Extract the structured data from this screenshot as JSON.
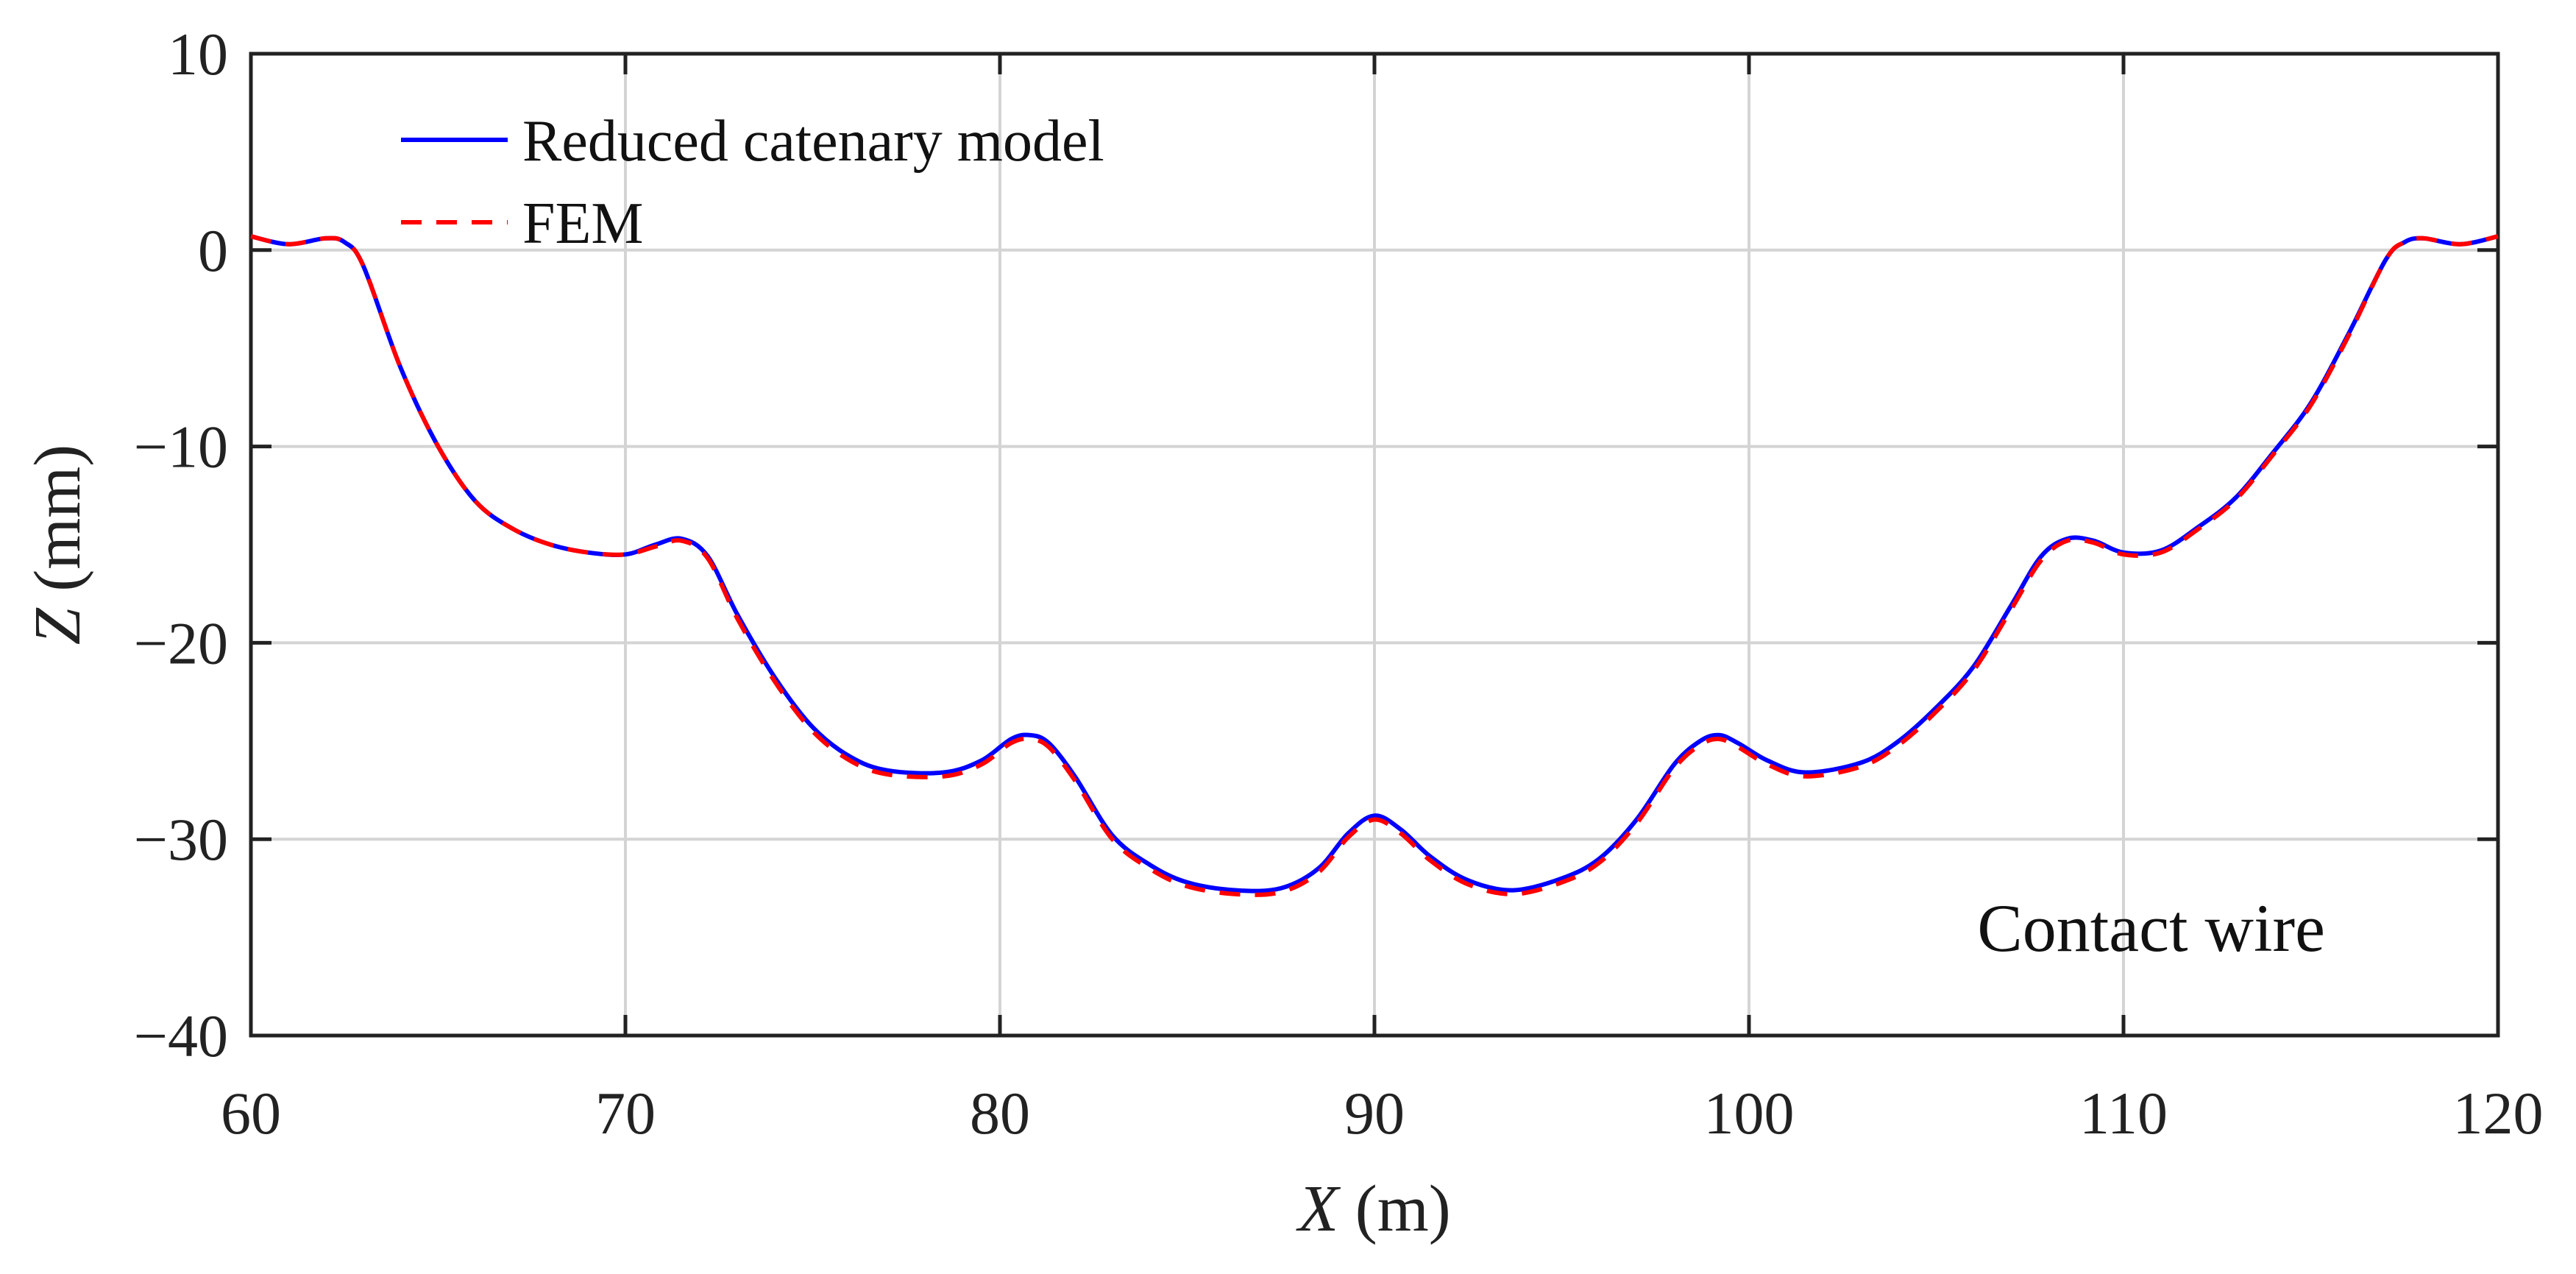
{
  "chart_data": {
    "type": "line",
    "title": "",
    "xlabel_var": "X",
    "xlabel_unit": " (m)",
    "ylabel_var": "Z",
    "ylabel_unit": " (mm)",
    "xlim": [
      60,
      120
    ],
    "ylim": [
      -40,
      10
    ],
    "x_ticks": [
      60,
      70,
      80,
      90,
      100,
      110,
      120
    ],
    "y_ticks": [
      10,
      0,
      -10,
      -20,
      -30,
      -40
    ],
    "x_tick_labels": [
      "60",
      "70",
      "80",
      "90",
      "100",
      "110",
      "120"
    ],
    "y_tick_labels": [
      "10",
      "0",
      "−10",
      "−20",
      "−30",
      "−40"
    ],
    "grid": true,
    "legend_position": "top-left",
    "annotation": "Contact wire",
    "x": [
      60.0,
      61.0,
      62.0,
      62.5,
      63.0,
      64.0,
      65.0,
      66.0,
      67.0,
      68.0,
      69.0,
      70.0,
      70.8,
      71.5,
      72.2,
      73.0,
      74.0,
      75.0,
      76.0,
      77.0,
      78.5,
      79.5,
      80.3,
      80.8,
      81.3,
      82.0,
      83.0,
      84.0,
      85.0,
      86.3,
      87.5,
      88.5,
      89.3,
      90.0,
      90.7,
      91.5,
      92.5,
      93.7,
      95.0,
      96.0,
      97.0,
      98.0,
      98.7,
      99.2,
      99.7,
      100.5,
      101.5,
      103.0,
      104.0,
      105.0,
      106.0,
      107.0,
      107.8,
      108.5,
      109.2,
      110.0,
      111.0,
      112.0,
      113.0,
      114.0,
      115.0,
      116.0,
      117.0,
      117.5,
      118.0,
      119.0,
      120.0
    ],
    "series": [
      {
        "name": "Reduced catenary model",
        "color": "#0000ff",
        "dash": "solid",
        "values": [
          0.7,
          0.3,
          0.6,
          0.4,
          -0.8,
          -6.0,
          -10.0,
          -12.8,
          -14.2,
          -15.0,
          -15.4,
          -15.5,
          -15.0,
          -14.7,
          -15.6,
          -18.6,
          -21.8,
          -24.3,
          -25.8,
          -26.5,
          -26.6,
          -26.0,
          -24.9,
          -24.7,
          -25.1,
          -26.8,
          -29.8,
          -31.3,
          -32.2,
          -32.6,
          -32.5,
          -31.5,
          -29.7,
          -28.8,
          -29.5,
          -30.9,
          -32.1,
          -32.6,
          -32.0,
          -31.0,
          -29.0,
          -26.2,
          -25.0,
          -24.7,
          -25.1,
          -26.0,
          -26.6,
          -26.1,
          -25.0,
          -23.3,
          -21.2,
          -18.1,
          -15.6,
          -14.7,
          -14.8,
          -15.4,
          -15.3,
          -14.1,
          -12.6,
          -10.3,
          -7.8,
          -4.3,
          -0.5,
          0.4,
          0.6,
          0.3,
          0.7
        ]
      },
      {
        "name": "FEM",
        "color": "#ff0000",
        "dash": "dashed",
        "values": [
          0.7,
          0.3,
          0.6,
          0.4,
          -0.8,
          -6.0,
          -10.0,
          -12.8,
          -14.2,
          -15.0,
          -15.4,
          -15.5,
          -15.1,
          -14.8,
          -15.7,
          -18.8,
          -22.0,
          -24.5,
          -26.0,
          -26.7,
          -26.8,
          -26.2,
          -25.1,
          -24.9,
          -25.3,
          -27.0,
          -30.0,
          -31.5,
          -32.4,
          -32.8,
          -32.7,
          -31.7,
          -29.9,
          -29.0,
          -29.7,
          -31.1,
          -32.3,
          -32.8,
          -32.2,
          -31.2,
          -29.2,
          -26.4,
          -25.2,
          -24.9,
          -25.3,
          -26.2,
          -26.8,
          -26.3,
          -25.2,
          -23.5,
          -21.4,
          -18.3,
          -15.8,
          -14.8,
          -14.9,
          -15.5,
          -15.4,
          -14.2,
          -12.7,
          -10.4,
          -7.9,
          -4.4,
          -0.5,
          0.4,
          0.6,
          0.3,
          0.7
        ]
      }
    ]
  }
}
